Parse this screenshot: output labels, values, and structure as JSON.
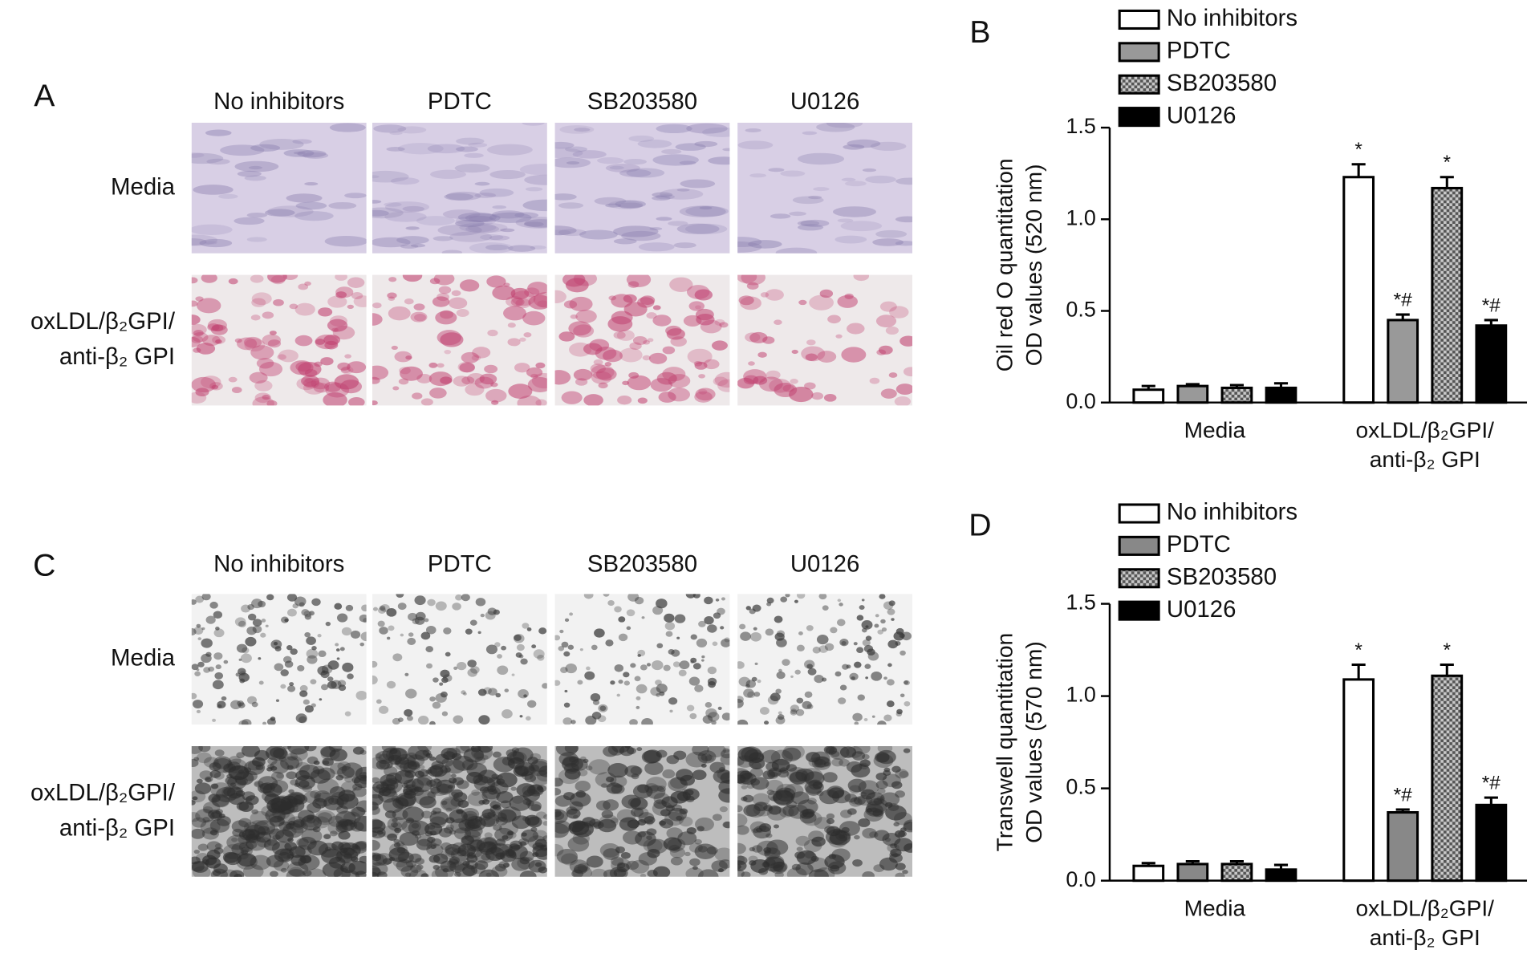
{
  "panels": [
    {
      "letter": "A",
      "columns": [
        "No inhibitors",
        "PDTC",
        "SB203580",
        "U0126"
      ],
      "rows": [
        "Media",
        "oxLDL/β₂GPI/\nanti-β₂ GPI"
      ]
    },
    {
      "letter": "C",
      "columns": [
        "No inhibitors",
        "PDTC",
        "SB203580",
        "U0126"
      ],
      "rows": [
        "Media",
        "oxLDL/β₂GPI/\nanti-β₂ GPI"
      ]
    }
  ],
  "chart_data": [
    {
      "type": "bar",
      "panel": "B",
      "y_label": "Oil red O quantitation\nOD values (520 nm)",
      "categories": [
        "Media",
        "oxLDL/β₂GPI/\nanti-β₂ GPI"
      ],
      "ylim": [
        0,
        1.5
      ],
      "yticks": [
        {
          "value": 0,
          "label": "0.0"
        },
        {
          "value": 0.5,
          "label": "0.5"
        },
        {
          "value": 1,
          "label": "1.0"
        },
        {
          "value": 1.5,
          "label": "1.5"
        }
      ],
      "series": [
        {
          "name": "No inhibitors",
          "color": "#ffffff",
          "values": [
            0.07,
            1.23
          ],
          "errors": [
            0.02,
            0.07
          ],
          "signif": [
            null,
            "*"
          ]
        },
        {
          "name": "PDTC",
          "color": "#999999",
          "values": [
            0.09,
            0.45
          ],
          "errors": [
            0.01,
            0.03
          ],
          "signif": [
            null,
            "*#"
          ]
        },
        {
          "name": "SB203580",
          "color": "#9a9a9a",
          "hatch": true,
          "values": [
            0.08,
            1.17
          ],
          "errors": [
            0.015,
            0.06
          ],
          "signif": [
            null,
            "*"
          ]
        },
        {
          "name": "U0126",
          "color": "#000000",
          "values": [
            0.08,
            0.42
          ],
          "errors": [
            0.025,
            0.03
          ],
          "signif": [
            null,
            "*#"
          ]
        }
      ]
    },
    {
      "type": "bar",
      "panel": "D",
      "y_label": "Transwell quantitation\nOD values (570 nm)",
      "categories": [
        "Media",
        "oxLDL/β₂GPI/\nanti-β₂ GPI"
      ],
      "ylim": [
        0,
        1.5
      ],
      "yticks": [
        {
          "value": 0,
          "label": "0.0"
        },
        {
          "value": 0.5,
          "label": "0.5"
        },
        {
          "value": 1,
          "label": "1.0"
        },
        {
          "value": 1.5,
          "label": "1.5"
        }
      ],
      "series": [
        {
          "name": "No inhibitors",
          "color": "#ffffff",
          "values": [
            0.08,
            1.09
          ],
          "errors": [
            0.015,
            0.08
          ],
          "signif": [
            null,
            "*"
          ]
        },
        {
          "name": "PDTC",
          "color": "#888888",
          "values": [
            0.09,
            0.37
          ],
          "errors": [
            0.015,
            0.015
          ],
          "signif": [
            null,
            "*#"
          ]
        },
        {
          "name": "SB203580",
          "color": "#9a9a9a",
          "hatch": true,
          "values": [
            0.09,
            1.11
          ],
          "errors": [
            0.015,
            0.06
          ],
          "signif": [
            null,
            "*"
          ]
        },
        {
          "name": "U0126",
          "color": "#000000",
          "values": [
            0.06,
            0.41
          ],
          "errors": [
            0.025,
            0.04
          ],
          "signif": [
            null,
            "*#"
          ]
        }
      ]
    }
  ]
}
